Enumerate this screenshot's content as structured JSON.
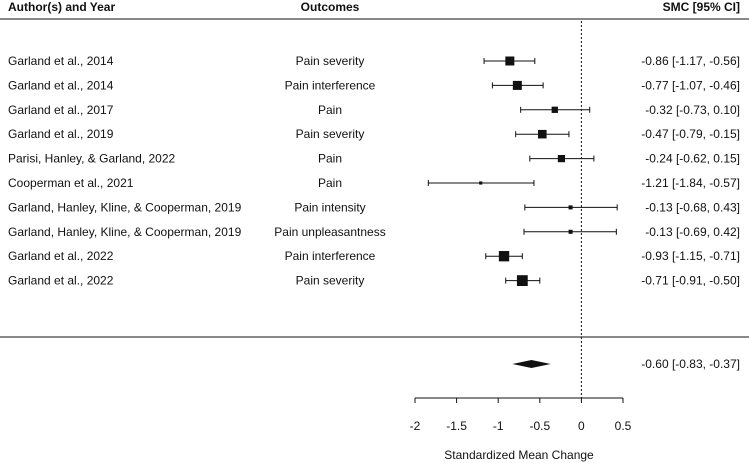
{
  "chart_data": {
    "type": "forest",
    "headers": {
      "study": "Author(s) and Year",
      "outcome": "Outcomes",
      "estimate": "SMC [95% CI]"
    },
    "rows": [
      {
        "study": "Garland et al., 2014",
        "outcome": "Pain severity",
        "smc": -0.86,
        "lower": -1.17,
        "upper": -0.56,
        "label": "-0.86 [-1.17, -0.56]",
        "weight": 1.0
      },
      {
        "study": "Garland et al., 2014",
        "outcome": "Pain interference",
        "smc": -0.77,
        "lower": -1.07,
        "upper": -0.46,
        "label": "-0.77 [-1.07, -0.46]",
        "weight": 1.0
      },
      {
        "study": "Garland et al., 2017",
        "outcome": "Pain",
        "smc": -0.32,
        "lower": -0.73,
        "upper": 0.1,
        "label": "-0.32 [-0.73,  0.10]",
        "weight": 0.7
      },
      {
        "study": "Garland et al., 2019",
        "outcome": "Pain severity",
        "smc": -0.47,
        "lower": -0.79,
        "upper": -0.15,
        "label": "-0.47 [-0.79, -0.15]",
        "weight": 0.95
      },
      {
        "study": "Parisi, Hanley, & Garland, 2022",
        "outcome": "Pain",
        "smc": -0.24,
        "lower": -0.62,
        "upper": 0.15,
        "label": "-0.24 [-0.62,  0.15]",
        "weight": 0.8
      },
      {
        "study": "Cooperman et al., 2021",
        "outcome": "Pain",
        "smc": -1.21,
        "lower": -1.84,
        "upper": -0.57,
        "label": "-1.21 [-1.84, -0.57]",
        "weight": 0.35
      },
      {
        "study": "Garland, Hanley, Kline, & Cooperman, 2019",
        "outcome": "Pain intensity",
        "smc": -0.13,
        "lower": -0.68,
        "upper": 0.43,
        "label": "-0.13 [-0.68,  0.43]",
        "weight": 0.45
      },
      {
        "study": "Garland, Hanley, Kline, & Cooperman, 2019",
        "outcome": "Pain unpleasantness",
        "smc": -0.13,
        "lower": -0.69,
        "upper": 0.42,
        "label": "-0.13 [-0.69,  0.42]",
        "weight": 0.45
      },
      {
        "study": "Garland et al., 2022",
        "outcome": "Pain interference",
        "smc": -0.93,
        "lower": -1.15,
        "upper": -0.71,
        "label": "-0.93 [-1.15, -0.71]",
        "weight": 1.15
      },
      {
        "study": "Garland et al., 2022",
        "outcome": "Pain severity",
        "smc": -0.71,
        "lower": -0.91,
        "upper": -0.5,
        "label": "-0.71 [-0.91, -0.50]",
        "weight": 1.2
      }
    ],
    "summary": {
      "smc": -0.6,
      "lower": -0.83,
      "upper": -0.37,
      "label": "-0.60 [-0.83, -0.37]"
    },
    "x_axis": {
      "label": "Standardized Mean Change",
      "ticks": [
        -2,
        -1.5,
        -1,
        -0.5,
        0,
        0.5
      ],
      "tick_labels": [
        "-2",
        "-1.5",
        "-1",
        "-0.5",
        "0",
        "0.5"
      ],
      "range": [
        -2,
        0.5
      ]
    },
    "reference_line": 0
  }
}
